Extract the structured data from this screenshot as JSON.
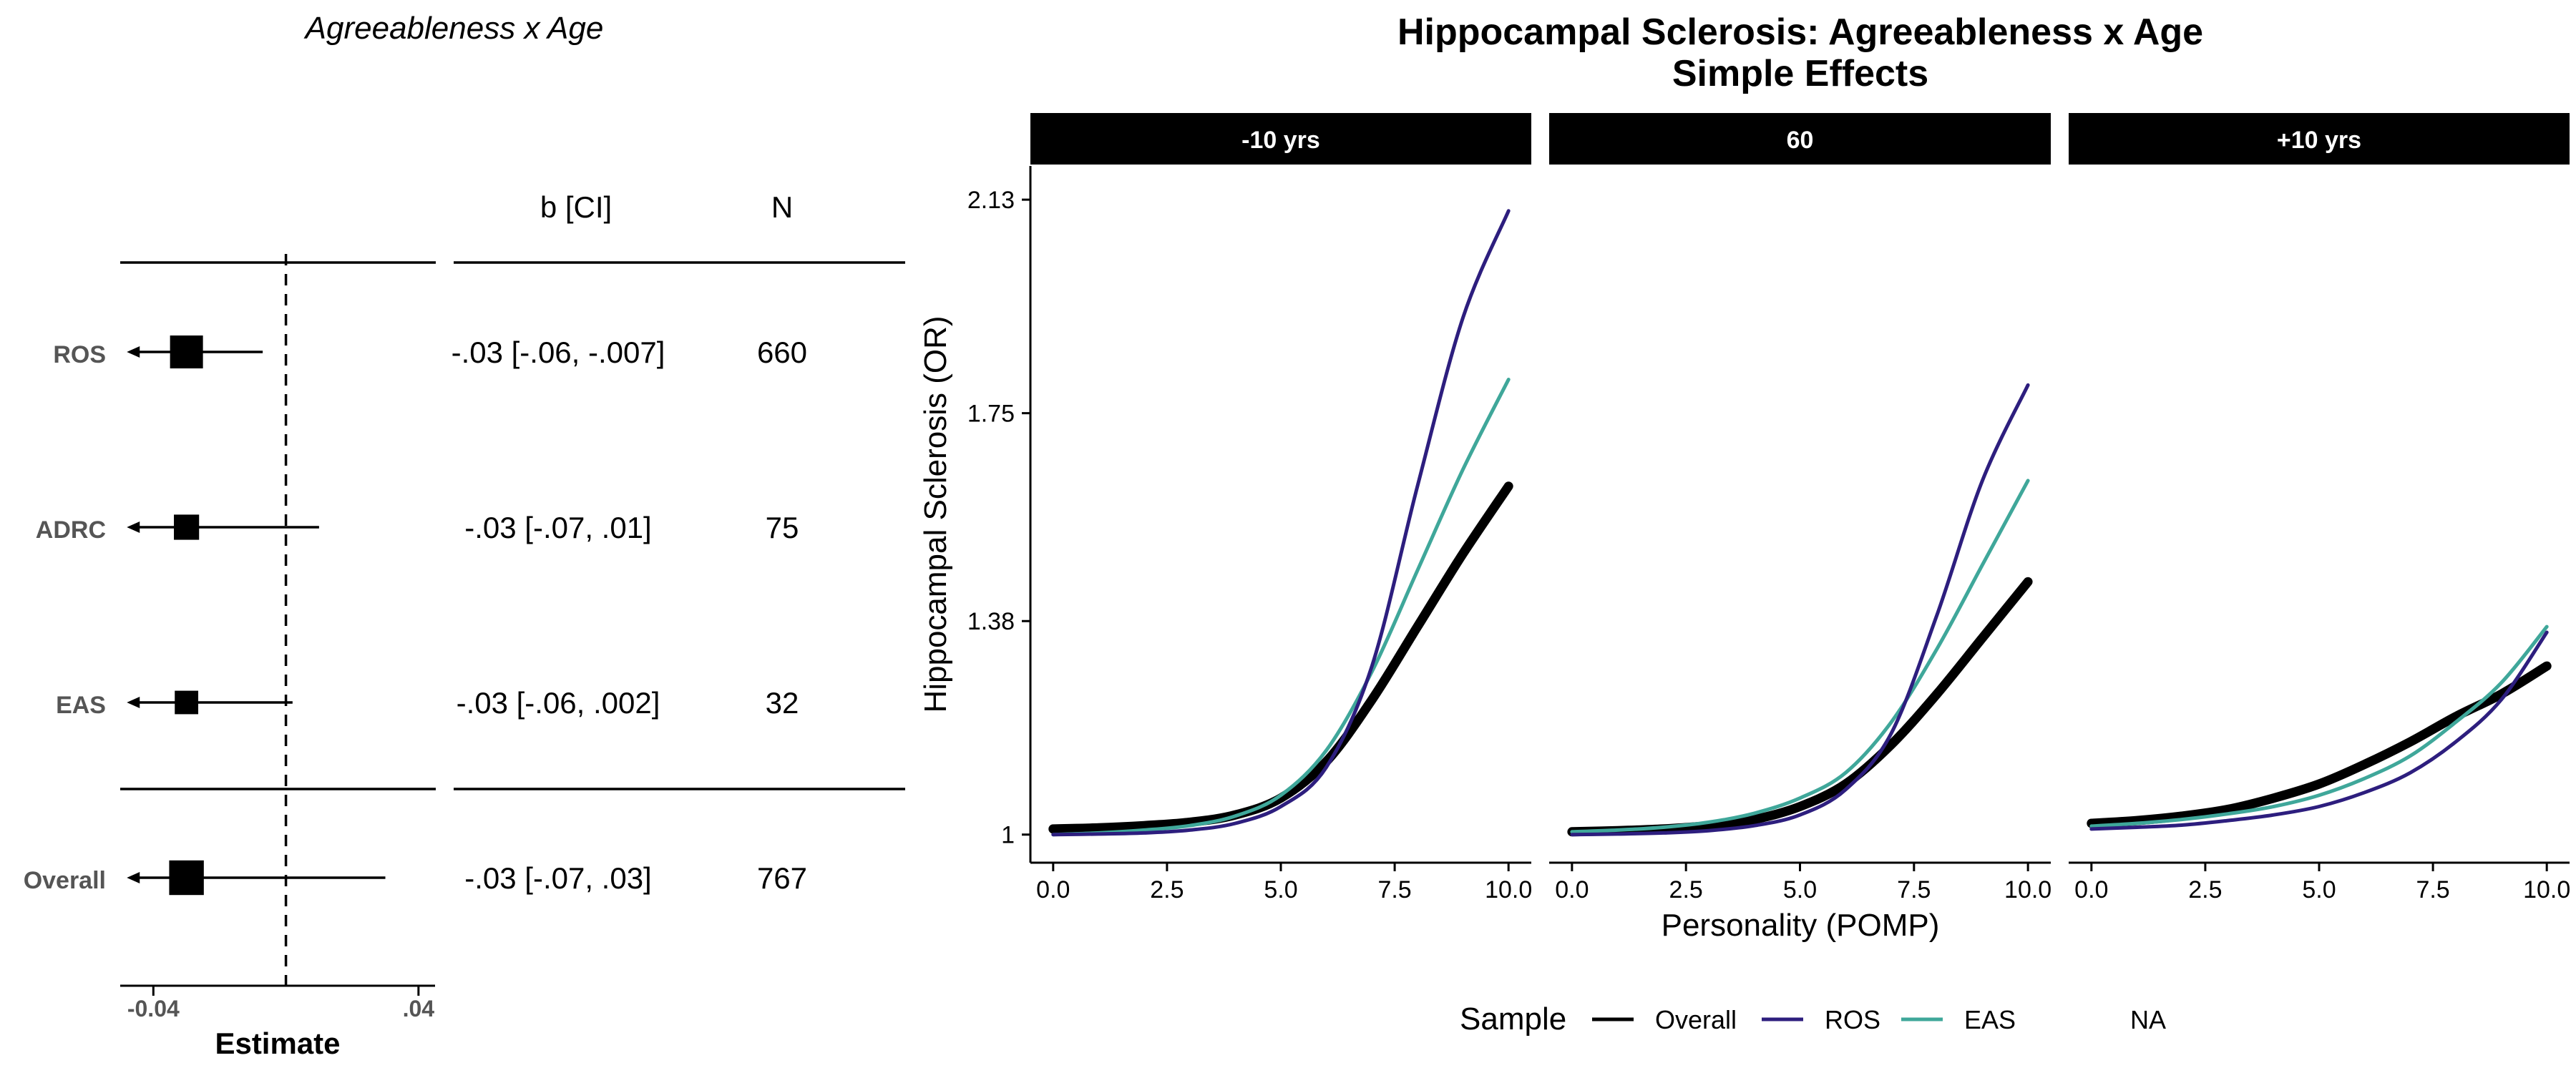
{
  "chart_data": [
    {
      "type": "forest",
      "title": "Agreeableness x Age",
      "xlabel": "Estimate",
      "xlim": [
        -0.05,
        0.045
      ],
      "xticks": [
        -0.04,
        0.04
      ],
      "xtick_labels": [
        "-0.04",
        ".04"
      ],
      "reference_line": 0,
      "columns": {
        "estimate_ci": "b [CI]",
        "n": "N"
      },
      "rows": [
        {
          "label": "ROS",
          "estimate": -0.03,
          "ci": [
            -0.06,
            -0.007
          ],
          "ci_text": "-.03 [-.06, -.007]",
          "n": "660",
          "weight": 1.0,
          "ci_low_truncated": true
        },
        {
          "label": "ADRC",
          "estimate": -0.03,
          "ci": [
            -0.07,
            0.01
          ],
          "ci_text": "-.03 [-.07, .01]",
          "n": "75",
          "weight": 0.55,
          "ci_low_truncated": true
        },
        {
          "label": "EAS",
          "estimate": -0.03,
          "ci": [
            -0.06,
            0.002
          ],
          "ci_text": "-.03 [-.06, .002]",
          "n": "32",
          "weight": 0.45,
          "ci_low_truncated": true
        },
        {
          "label": "Overall",
          "estimate": -0.03,
          "ci": [
            -0.07,
            0.03
          ],
          "ci_text": "-.03 [-.07, .03]",
          "n": "767",
          "weight": 1.1,
          "ci_low_truncated": true
        }
      ]
    },
    {
      "type": "line",
      "title": "Hippocampal Sclerosis: Agreeableness x Age",
      "subtitle": "Simple Effects",
      "xlabel": "Personality (POMP)",
      "ylabel": "Hippocampal Sclerosis (OR)",
      "xlim": [
        -0.5,
        10.5
      ],
      "xticks": [
        0,
        2.5,
        5,
        7.5,
        10
      ],
      "xtick_labels": [
        "0.0",
        "2.5",
        "5.0",
        "7.5",
        "10.0"
      ],
      "ylim": [
        0.95,
        2.19
      ],
      "yticks": [
        1,
        1.38,
        1.75,
        2.13
      ],
      "ytick_labels": [
        "1",
        "1.38",
        "1.75",
        "2.13"
      ],
      "legend": {
        "title": "Sample",
        "position": "bottom",
        "entries": [
          "Overall",
          "ROS",
          "EAS",
          "NA"
        ]
      },
      "series_colors": {
        "Overall": "#000000",
        "ROS": "#2d1e7e",
        "EAS": "#3fa79a"
      },
      "x": [
        0,
        1,
        2,
        3,
        4,
        5,
        6,
        7,
        8,
        9,
        10
      ],
      "panels": [
        {
          "label": "-10 yrs",
          "series": [
            {
              "name": "Overall",
              "values": [
                1.01,
                1.012,
                1.016,
                1.022,
                1.035,
                1.065,
                1.13,
                1.24,
                1.37,
                1.5,
                1.62
              ]
            },
            {
              "name": "ROS",
              "values": [
                1.0,
                1.001,
                1.003,
                1.008,
                1.02,
                1.05,
                1.12,
                1.3,
                1.62,
                1.92,
                2.11
              ]
            },
            {
              "name": "EAS",
              "values": [
                1.0,
                1.003,
                1.008,
                1.016,
                1.033,
                1.07,
                1.15,
                1.29,
                1.47,
                1.65,
                1.81
              ]
            }
          ]
        },
        {
          "label": "60",
          "series": [
            {
              "name": "Overall",
              "values": [
                1.005,
                1.007,
                1.01,
                1.016,
                1.027,
                1.05,
                1.09,
                1.16,
                1.25,
                1.35,
                1.45
              ]
            },
            {
              "name": "ROS",
              "values": [
                1.0,
                1.001,
                1.003,
                1.007,
                1.016,
                1.035,
                1.08,
                1.18,
                1.39,
                1.63,
                1.8
              ]
            },
            {
              "name": "EAS",
              "values": [
                1.005,
                1.008,
                1.013,
                1.022,
                1.038,
                1.065,
                1.11,
                1.2,
                1.33,
                1.48,
                1.63
              ]
            }
          ]
        },
        {
          "label": "+10 yrs",
          "series": [
            {
              "name": "Overall",
              "values": [
                1.02,
                1.025,
                1.033,
                1.045,
                1.065,
                1.09,
                1.125,
                1.165,
                1.21,
                1.25,
                1.3
              ]
            },
            {
              "name": "ROS",
              "values": [
                1.01,
                1.013,
                1.017,
                1.025,
                1.035,
                1.05,
                1.075,
                1.11,
                1.165,
                1.24,
                1.36
              ]
            },
            {
              "name": "EAS",
              "values": [
                1.015,
                1.02,
                1.027,
                1.037,
                1.05,
                1.07,
                1.1,
                1.14,
                1.2,
                1.27,
                1.37
              ]
            }
          ]
        }
      ]
    }
  ]
}
